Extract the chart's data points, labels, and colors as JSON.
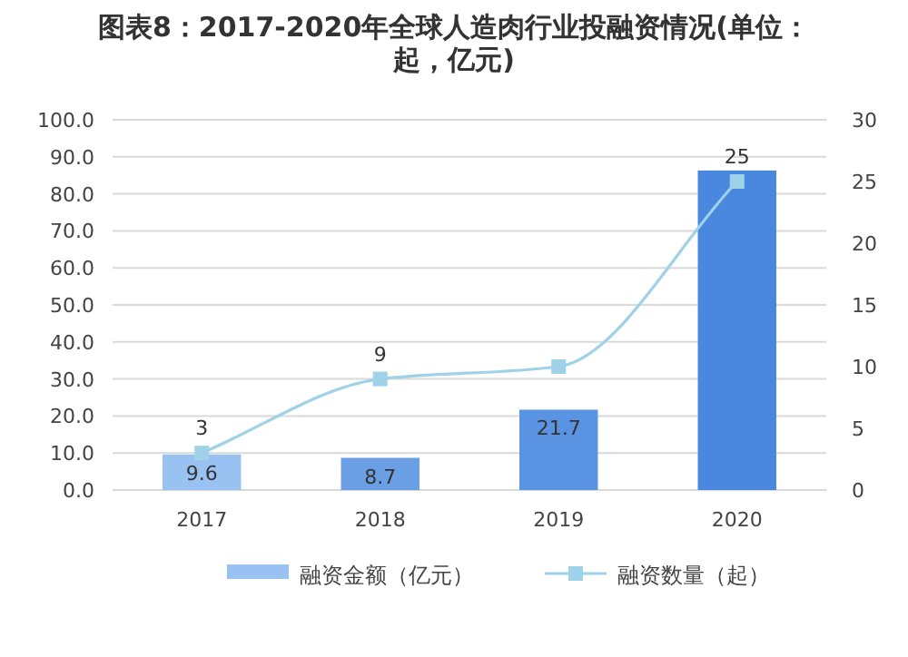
{
  "chart_data": {
    "type": "bar",
    "title": "图表8：2017-2020年全球人造肉行业投融资情况(单位：起，亿元)",
    "categories": [
      "2017",
      "2018",
      "2019",
      "2020"
    ],
    "ylim": [
      0,
      100
    ],
    "yticks": [
      {
        "value": 0,
        "label": "0.0"
      },
      {
        "value": 10,
        "label": "10.0"
      },
      {
        "value": 20,
        "label": "20.0"
      },
      {
        "value": 30,
        "label": "30.0"
      },
      {
        "value": 40,
        "label": "40.0"
      },
      {
        "value": 50,
        "label": "50.0"
      },
      {
        "value": 60,
        "label": "60.0"
      },
      {
        "value": 70,
        "label": "70.0"
      },
      {
        "value": 80,
        "label": "80.0"
      },
      {
        "value": 90,
        "label": "90.0"
      },
      {
        "value": 100,
        "label": "100.0"
      }
    ],
    "y2lim": [
      0,
      30
    ],
    "y2ticks": [
      0,
      5,
      10,
      15,
      20,
      25,
      30
    ],
    "grid": "y",
    "legend": "bottom",
    "series": [
      {
        "name": "融资金额（亿元）",
        "color": "#99c2f2",
        "colors": [
          "#99c2f2",
          "#6a9fe6",
          "#5a93e2",
          "#4a88df"
        ],
        "values": [
          9.6,
          8.7,
          21.7,
          86.3
        ],
        "value_labels": [
          "9.6",
          "8.7",
          "21.7",
          null
        ]
      },
      {
        "name": "融资数量（起）",
        "type": "line",
        "axis": "y2",
        "color": "#9fd2e8",
        "marker": "square",
        "values": [
          3,
          9,
          10,
          25
        ],
        "value_labels": [
          "3",
          "9",
          null,
          "25"
        ]
      }
    ]
  }
}
